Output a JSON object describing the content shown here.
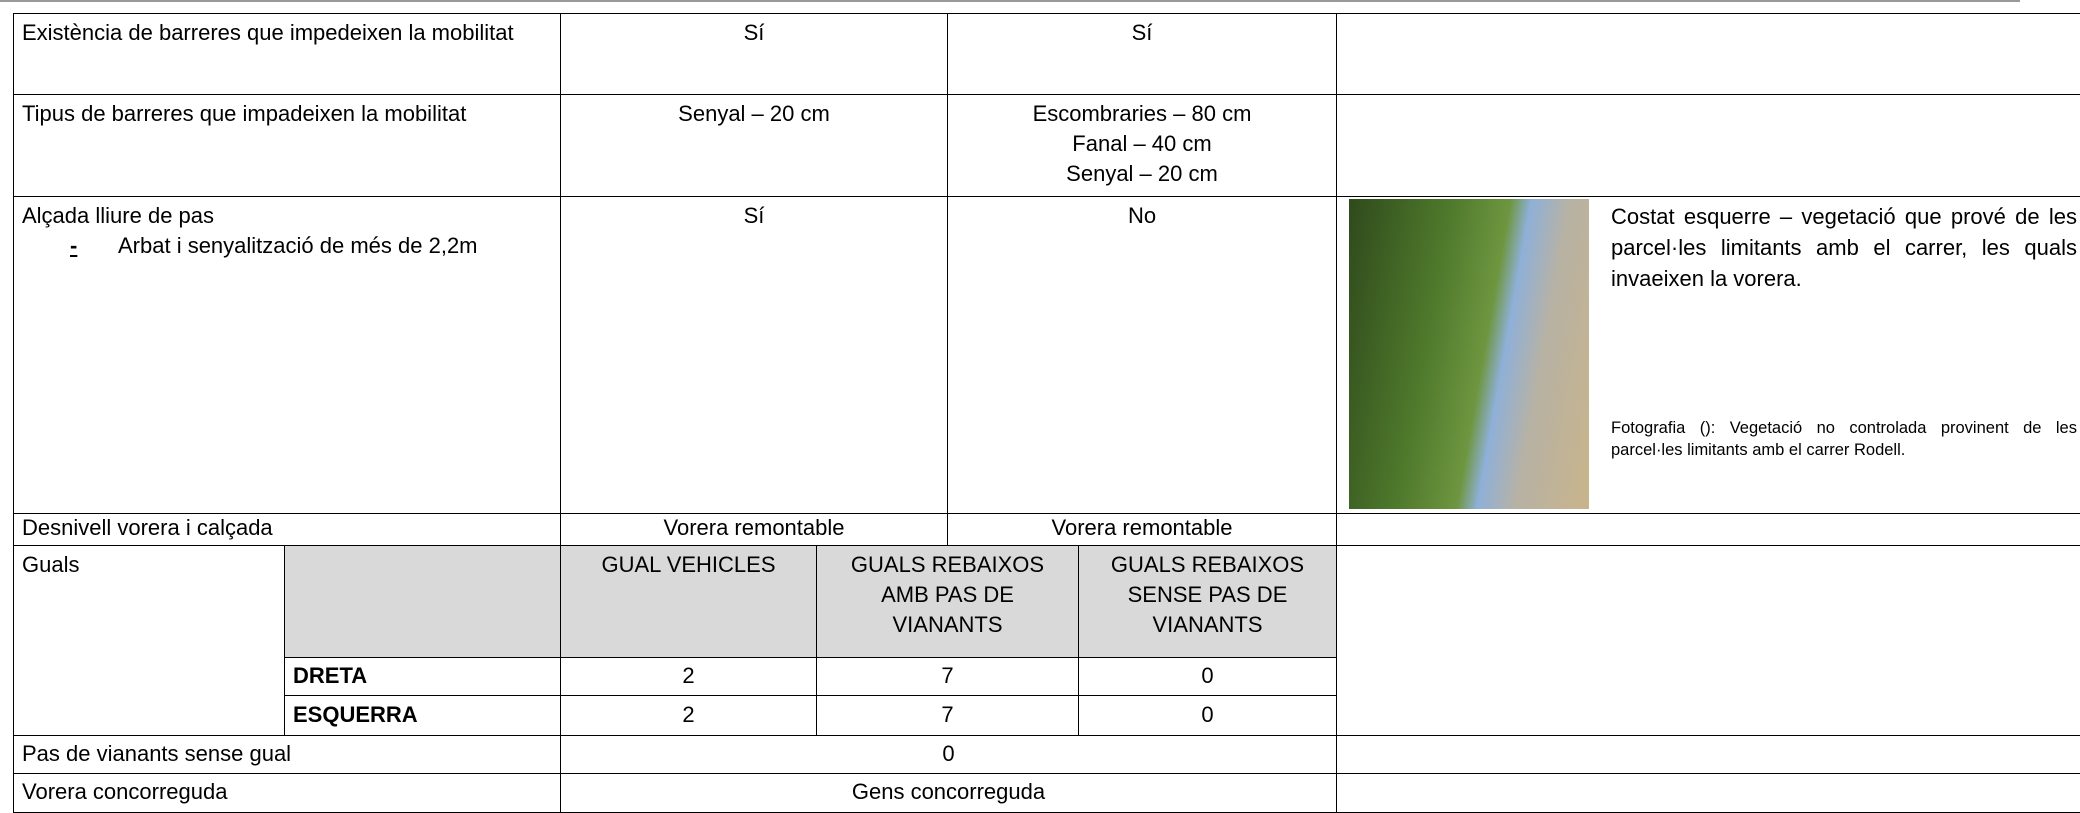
{
  "table": {
    "rows": [
      {
        "label": "Existència de barreres que impedeixen la mobilitat",
        "cells": [
          "Sí",
          "Sí"
        ]
      },
      {
        "label": "Tipus de barreres que impadeixen la mobilitat",
        "cells": [
          [
            "Senyal – 20 cm"
          ],
          [
            "Escombraries – 80 cm",
            "Fanal – 40 cm",
            "Senyal – 20 cm"
          ]
        ]
      },
      {
        "label": "Alçada lliure de pas",
        "marker": "-",
        "item": "Arbat i senyalització de més de 2,2m",
        "cells": [
          "Sí",
          "No"
        ],
        "note": "Costat esquerre – vegetació que prové de les parcel·les limitants amb el carrer, les quals invaeixen la vorera.",
        "caption": "Fotografia (): Vegetació no controlada provinent de les parcel·les limitants amb el carrer Rodell."
      },
      {
        "label": "Desnivell vorera i calçada",
        "cells": [
          "Vorera remontable",
          "Vorera remontable"
        ]
      }
    ],
    "guals": {
      "label": "Guals",
      "headers": [
        "GUAL VEHICLES",
        "GUALS REBAIXOS AMB PAS DE VIANANTS",
        "GUALS REBAIXOS SENSE PAS DE VIANANTS"
      ],
      "rows": [
        {
          "side": "DRETA",
          "values": [
            2,
            7,
            0
          ]
        },
        {
          "side": "ESQUERRA",
          "values": [
            2,
            7,
            0
          ]
        }
      ]
    },
    "footer_rows": [
      {
        "label": "Pas de vianants sense gual",
        "value": 0
      },
      {
        "label": "Vorera concorreguda",
        "value": "Gens concorreguda"
      }
    ]
  }
}
